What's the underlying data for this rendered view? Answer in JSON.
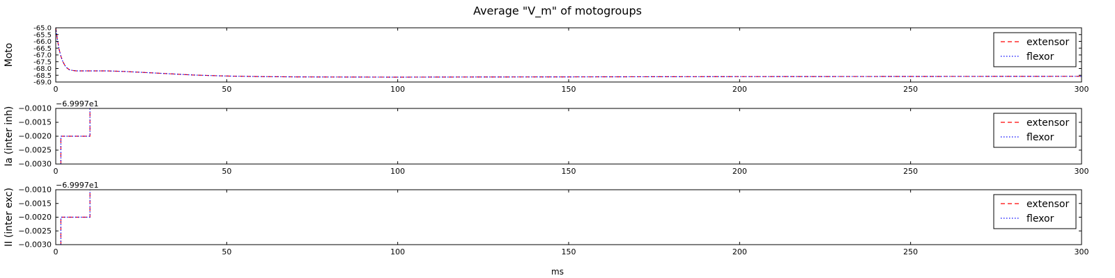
{
  "title": "Average \"V_m\" of motogroups",
  "xlabel": "ms",
  "chart_data": [
    {
      "type": "line",
      "ylabel": "Moto",
      "xlim": [
        0,
        300
      ],
      "ylim": [
        -69.0,
        -65.0
      ],
      "x_ticks": [
        "0",
        "50",
        "100",
        "150",
        "200",
        "250",
        "300"
      ],
      "y_ticks": [
        "-65.0",
        "-65.5",
        "-66.0",
        "-66.5",
        "-67.0",
        "-67.5",
        "-68.0",
        "-68.5",
        "-69.0"
      ],
      "legend_position": "top-right",
      "series": [
        {
          "name": "extensor",
          "color": "#ff0000",
          "style": "dashed",
          "x": [
            0,
            0.5,
            1,
            1.5,
            2,
            2.5,
            3,
            4,
            5,
            6,
            8,
            10,
            15,
            20,
            30,
            40,
            50,
            60,
            70,
            80,
            100,
            120,
            150,
            200,
            250,
            300
          ],
          "y": [
            -65.0,
            -65.9,
            -66.6,
            -67.1,
            -67.45,
            -67.7,
            -67.9,
            -68.1,
            -68.15,
            -68.18,
            -68.18,
            -68.18,
            -68.18,
            -68.22,
            -68.35,
            -68.48,
            -68.56,
            -68.6,
            -68.62,
            -68.63,
            -68.64,
            -68.63,
            -68.62,
            -68.6,
            -68.59,
            -68.58
          ]
        },
        {
          "name": "flexor",
          "color": "#0000ff",
          "style": "dotted",
          "x": [
            0,
            0.5,
            1,
            1.5,
            2,
            2.5,
            3,
            4,
            5,
            6,
            8,
            10,
            15,
            20,
            30,
            40,
            50,
            60,
            70,
            80,
            100,
            120,
            150,
            200,
            250,
            300
          ],
          "y": [
            -65.0,
            -65.9,
            -66.6,
            -67.1,
            -67.45,
            -67.7,
            -67.9,
            -68.1,
            -68.15,
            -68.18,
            -68.18,
            -68.18,
            -68.18,
            -68.22,
            -68.35,
            -68.48,
            -68.56,
            -68.6,
            -68.62,
            -68.63,
            -68.64,
            -68.63,
            -68.62,
            -68.6,
            -68.59,
            -68.58
          ]
        }
      ]
    },
    {
      "type": "line",
      "ylabel": "Ia (inter inh)",
      "offset_text": "−6.9997e1",
      "xlim": [
        0,
        300
      ],
      "ylim": [
        -0.003,
        -0.001
      ],
      "x_ticks": [
        "0",
        "50",
        "100",
        "150",
        "200",
        "250",
        "300"
      ],
      "y_ticks": [
        "−0.0010",
        "−0.0015",
        "−0.0020",
        "−0.0025",
        "−0.0030"
      ],
      "legend_position": "top-right",
      "series": [
        {
          "name": "extensor",
          "color": "#ff0000",
          "style": "dashed",
          "x": [
            1.5,
            1.5,
            10,
            10
          ],
          "y": [
            -0.003,
            -0.002,
            -0.002,
            -0.001
          ]
        },
        {
          "name": "flexor",
          "color": "#0000ff",
          "style": "dotted",
          "x": [
            1.5,
            1.5,
            10,
            10
          ],
          "y": [
            -0.003,
            -0.002,
            -0.002,
            -0.001
          ]
        }
      ]
    },
    {
      "type": "line",
      "ylabel": "II (inter exc)",
      "offset_text": "−6.9997e1",
      "xlim": [
        0,
        300
      ],
      "ylim": [
        -0.003,
        -0.001
      ],
      "x_ticks": [
        "0",
        "50",
        "100",
        "150",
        "200",
        "250",
        "300"
      ],
      "y_ticks": [
        "−0.0010",
        "−0.0015",
        "−0.0020",
        "−0.0025",
        "−0.0030"
      ],
      "legend_position": "top-right",
      "series": [
        {
          "name": "extensor",
          "color": "#ff0000",
          "style": "dashed",
          "x": [
            1.5,
            1.5,
            10,
            10
          ],
          "y": [
            -0.003,
            -0.002,
            -0.002,
            -0.001
          ]
        },
        {
          "name": "flexor",
          "color": "#0000ff",
          "style": "dotted",
          "x": [
            1.5,
            1.5,
            10,
            10
          ],
          "y": [
            -0.003,
            -0.002,
            -0.002,
            -0.001
          ]
        }
      ]
    }
  ]
}
